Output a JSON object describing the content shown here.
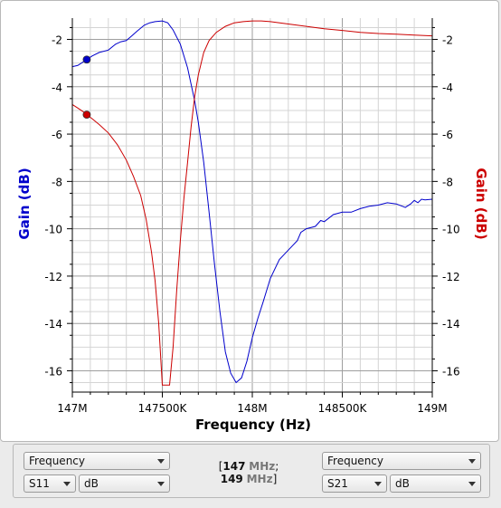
{
  "chart_data": {
    "type": "line",
    "xlabel": "Frequency (Hz)",
    "xlim": [
      147000000,
      149000000
    ],
    "x_ticks": [
      147000000,
      147500000,
      148000000,
      148500000,
      149000000
    ],
    "x_tick_labels": [
      "147M",
      "147500K",
      "148M",
      "148500K",
      "149M"
    ],
    "y_left": {
      "label": "Gain (dB)",
      "color": "#0000cc",
      "ticks": [
        -2,
        -4,
        -6,
        -8,
        -10,
        -12,
        -14,
        -16
      ],
      "lim": [
        -16.9,
        -1.1
      ]
    },
    "y_right": {
      "label": "Gain (dB)",
      "color": "#cc0000",
      "ticks": [
        -2,
        -4,
        -6,
        -8,
        -10,
        -12,
        -14,
        -16
      ],
      "lim": [
        -16.9,
        -1.1
      ]
    },
    "grid": true,
    "series": [
      {
        "color": "#0000cc",
        "axis": "left",
        "marker_x": 147080000,
        "marker_y": -2.85,
        "x": [
          147000000,
          147030000,
          147060000,
          147080000,
          147110000,
          147150000,
          147200000,
          147240000,
          147270000,
          147300000,
          147330000,
          147360000,
          147400000,
          147430000,
          147460000,
          147500000,
          147530000,
          147560000,
          147600000,
          147640000,
          147680000,
          147700000,
          147730000,
          147760000,
          147790000,
          147820000,
          147850000,
          147880000,
          147910000,
          147940000,
          147970000,
          148000000,
          148030000,
          148060000,
          148100000,
          148150000,
          148200000,
          148250000,
          148270000,
          148300000,
          148350000,
          148380000,
          148400000,
          148450000,
          148500000,
          148550000,
          148600000,
          148650000,
          148700000,
          148750000,
          148800000,
          148850000,
          148880000,
          148900000,
          148920000,
          148940000,
          148960000,
          149000000
        ],
        "y": [
          -3.15,
          -3.1,
          -2.95,
          -2.85,
          -2.7,
          -2.55,
          -2.45,
          -2.2,
          -2.1,
          -2.05,
          -1.85,
          -1.65,
          -1.4,
          -1.3,
          -1.25,
          -1.22,
          -1.3,
          -1.6,
          -2.2,
          -3.2,
          -4.6,
          -5.5,
          -7.2,
          -9.3,
          -11.5,
          -13.5,
          -15.2,
          -16.1,
          -16.5,
          -16.3,
          -15.6,
          -14.6,
          -13.8,
          -13.1,
          -12.1,
          -11.3,
          -10.9,
          -10.5,
          -10.15,
          -10.0,
          -9.9,
          -9.65,
          -9.7,
          -9.4,
          -9.3,
          -9.3,
          -9.15,
          -9.05,
          -9.0,
          -8.9,
          -8.95,
          -9.1,
          -8.95,
          -8.8,
          -8.9,
          -8.75,
          -8.78,
          -8.75
        ]
      },
      {
        "color": "#cc0000",
        "axis": "right",
        "marker_x": 147080000,
        "marker_y": -5.18,
        "x": [
          147000000,
          147030000,
          147060000,
          147080000,
          147110000,
          147150000,
          147200000,
          147250000,
          147300000,
          147340000,
          147380000,
          147410000,
          147440000,
          147460000,
          147480000,
          147500000,
          147520000,
          147540000,
          147560000,
          147580000,
          147600000,
          147620000,
          147640000,
          147660000,
          147680000,
          147700000,
          147730000,
          147760000,
          147800000,
          147850000,
          147900000,
          147950000,
          148000000,
          148050000,
          148100000,
          148200000,
          148300000,
          148400000,
          148500000,
          148600000,
          148700000,
          148800000,
          148900000,
          149000000
        ],
        "y": [
          -4.75,
          -4.9,
          -5.05,
          -5.18,
          -5.35,
          -5.6,
          -5.95,
          -6.45,
          -7.1,
          -7.8,
          -8.6,
          -9.6,
          -11.0,
          -12.2,
          -14.0,
          -16.6,
          -16.6,
          -16.6,
          -15.0,
          -12.6,
          -10.5,
          -8.7,
          -7.2,
          -5.7,
          -4.4,
          -3.5,
          -2.55,
          -2.05,
          -1.7,
          -1.45,
          -1.3,
          -1.25,
          -1.22,
          -1.22,
          -1.25,
          -1.35,
          -1.45,
          -1.55,
          -1.62,
          -1.7,
          -1.75,
          -1.78,
          -1.82,
          -1.85
        ]
      }
    ]
  },
  "controls": {
    "left": {
      "x_param": "Frequency",
      "param": "S11",
      "unit": "dB"
    },
    "right": {
      "x_param": "Frequency",
      "param": "S21",
      "unit": "dB"
    },
    "range": {
      "start_value": "147",
      "start_unit": "MHz",
      "sep": ";",
      "stop_value": "149",
      "stop_unit": "MHz"
    }
  }
}
